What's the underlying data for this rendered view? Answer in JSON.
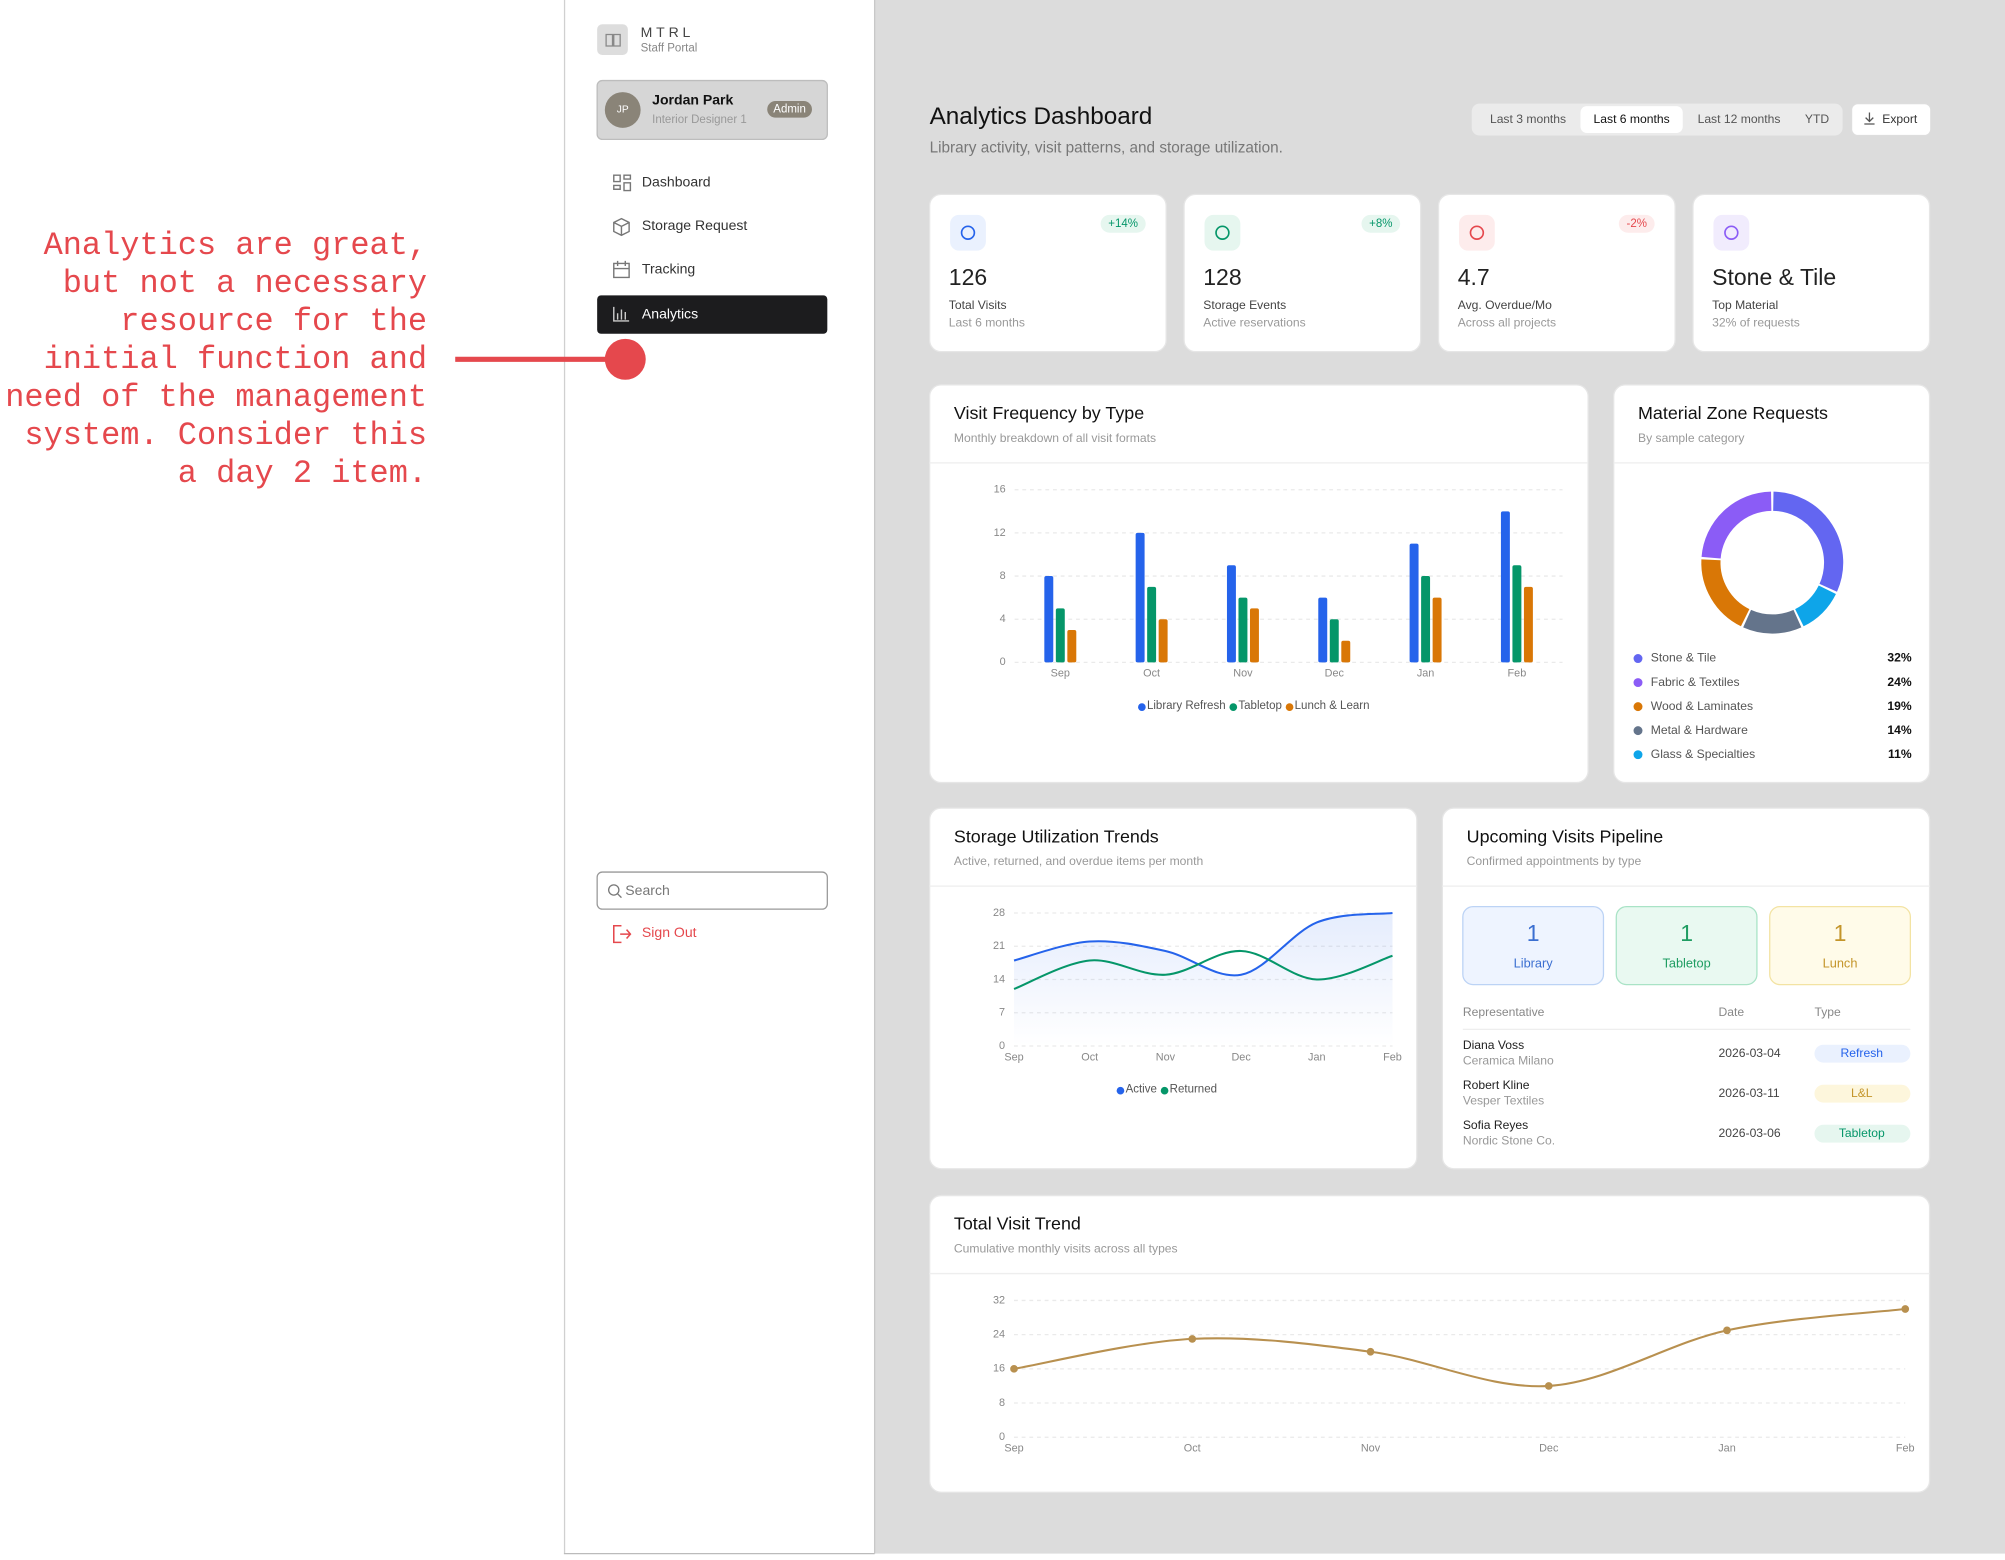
{
  "annotation": {
    "lines": [
      "Analytics are great,",
      "but not a necessary",
      "resource for the",
      "initial function and",
      "need of the management",
      "system. Consider this",
      "a day 2 item."
    ]
  },
  "sidebar": {
    "brand": "MTRL",
    "tagline": "Staff Portal",
    "user": {
      "initials": "JP",
      "name": "Jordan Park",
      "role": "Interior Designer 1",
      "badge": "Admin"
    },
    "nav": [
      {
        "label": "Dashboard"
      },
      {
        "label": "Storage Request"
      },
      {
        "label": "Tracking"
      },
      {
        "label": "Analytics",
        "active": true
      }
    ],
    "search_placeholder": "Search",
    "sign_out": "Sign Out"
  },
  "header": {
    "title": "Analytics Dashboard",
    "subtitle": "Library activity, visit patterns, and storage utilization.",
    "ranges": [
      {
        "label": "Last 3 months"
      },
      {
        "label": "Last 6 months",
        "active": true
      },
      {
        "label": "Last 12 months"
      },
      {
        "label": "YTD"
      }
    ],
    "export": "Export"
  },
  "kpis": [
    {
      "value": 126,
      "label": "Total Visits",
      "sub": "Last 6 months",
      "change": "+14%",
      "trend": "up"
    },
    {
      "value": 128,
      "label": "Storage Events",
      "sub": "Active reservations",
      "change": "+8%",
      "trend": "up"
    },
    {
      "value": 4.7,
      "label": "Avg. Overdue/Mo",
      "sub": "Across all projects",
      "change": "-2%",
      "trend": "down"
    },
    {
      "value": "Stone & Tile",
      "label": "Top Material",
      "sub": "32% of requests"
    }
  ],
  "visit_frequency": {
    "type": "bar",
    "title": "Visit Frequency by Type",
    "subtitle": "Monthly breakdown of all visit formats",
    "categories": [
      "Sep",
      "Oct",
      "Nov",
      "Dec",
      "Jan",
      "Feb"
    ],
    "series": [
      {
        "name": "Library Refresh",
        "color": "#2563eb",
        "values": [
          8,
          12,
          9,
          6,
          11,
          14
        ]
      },
      {
        "name": "Tabletop",
        "color": "#059669",
        "values": [
          5,
          7,
          6,
          4,
          8,
          9
        ]
      },
      {
        "name": "Lunch & Learn",
        "color": "#d97706",
        "values": [
          3,
          4,
          5,
          2,
          6,
          7
        ]
      }
    ],
    "ylim": [
      0,
      16
    ],
    "yticks": [
      0,
      4,
      8,
      12,
      16
    ],
    "grid": true
  },
  "material_zones": {
    "type": "pie",
    "title": "Material Zone Requests",
    "subtitle": "By sample category",
    "categories": [
      "Stone & Tile",
      "Fabric & Textiles",
      "Wood & Laminates",
      "Metal & Hardware",
      "Glass & Specialties"
    ],
    "values": [
      32,
      24,
      19,
      14,
      11
    ],
    "value_labels": [
      "32%",
      "24%",
      "19%",
      "14%",
      "11%"
    ],
    "colors": [
      "#6366f1",
      "#8b5cf6",
      "#d97706",
      "#64748b",
      "#0ea5e9"
    ]
  },
  "storage_trends": {
    "type": "line",
    "title": "Storage Utilization Trends",
    "subtitle": "Active, returned, and overdue items per month",
    "categories": [
      "Sep",
      "Oct",
      "Nov",
      "Dec",
      "Jan",
      "Feb"
    ],
    "series": [
      {
        "name": "Active",
        "color": "#2563eb",
        "values": [
          18,
          22,
          20,
          15,
          26,
          28
        ],
        "area": true
      },
      {
        "name": "Returned",
        "color": "#059669",
        "values": [
          12,
          18,
          15,
          20,
          14,
          19
        ]
      }
    ],
    "ylim": [
      0,
      28
    ],
    "yticks": [
      0,
      7,
      14,
      21,
      28
    ],
    "grid": true
  },
  "pipeline": {
    "title": "Upcoming Visits Pipeline",
    "subtitle": "Confirmed appointments by type",
    "counts": [
      {
        "value": 1,
        "label": "Library"
      },
      {
        "value": 1,
        "label": "Tabletop"
      },
      {
        "value": 1,
        "label": "Lunch"
      }
    ],
    "columns": [
      "Representative",
      "Date",
      "Type"
    ],
    "rows": [
      {
        "name": "Diana Voss",
        "company": "Ceramica Milano",
        "date": "2026-03-04",
        "type": "Refresh"
      },
      {
        "name": "Robert Kline",
        "company": "Vesper Textiles",
        "date": "2026-03-11",
        "type": "L&L"
      },
      {
        "name": "Sofia Reyes",
        "company": "Nordic Stone Co.",
        "date": "2026-03-06",
        "type": "Tabletop"
      }
    ]
  },
  "total_trend": {
    "type": "line",
    "title": "Total Visit Trend",
    "subtitle": "Cumulative monthly visits across all types",
    "categories": [
      "Sep",
      "Oct",
      "Nov",
      "Dec",
      "Jan",
      "Feb"
    ],
    "series": [
      {
        "color": "#b8904f",
        "values": [
          16,
          23,
          20,
          12,
          25,
          30
        ],
        "markers": true
      }
    ],
    "ylim": [
      0,
      32
    ],
    "yticks": [
      0,
      8,
      16,
      24,
      32
    ],
    "grid": true
  }
}
